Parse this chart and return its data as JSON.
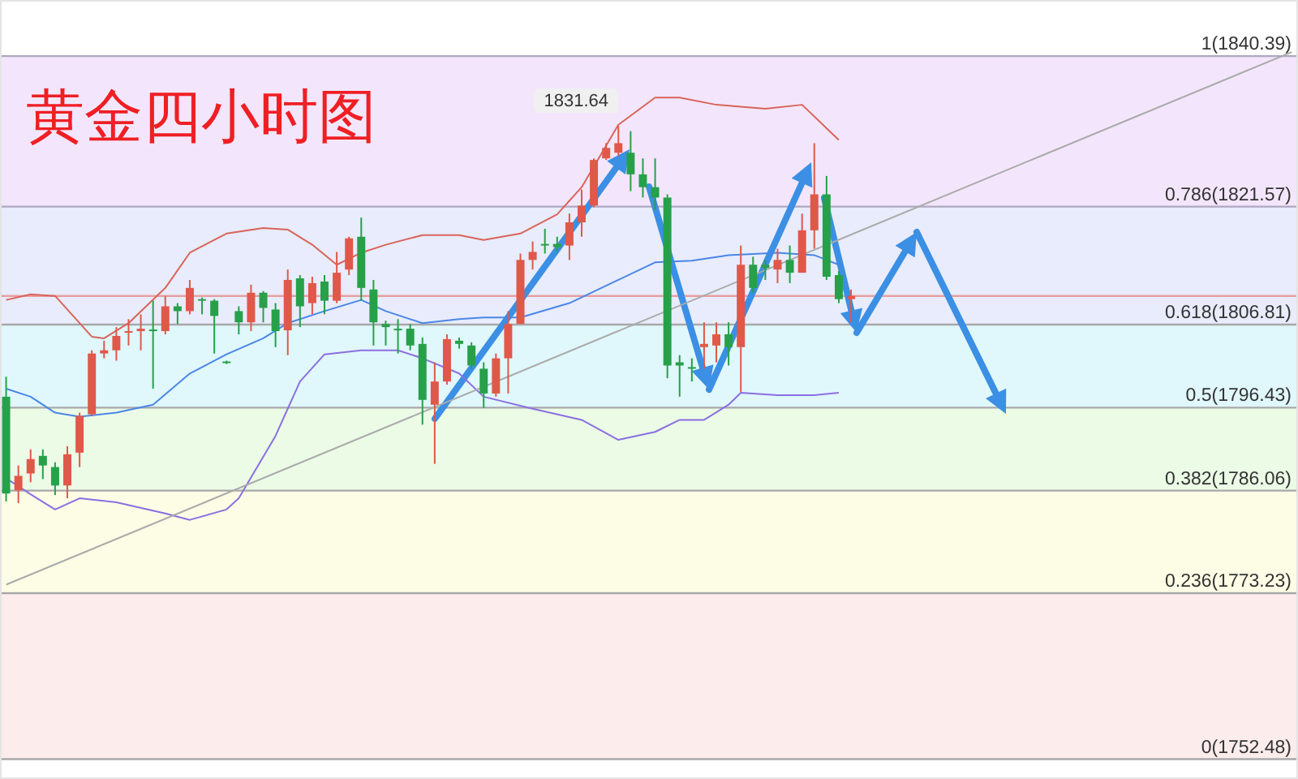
{
  "chart_data": {
    "type": "candlestick",
    "title": "黄金四小时图",
    "categories": [
      null,
      null,
      null,
      null,
      null,
      null,
      null,
      null,
      null,
      null,
      null,
      null,
      null,
      null,
      null,
      null,
      null,
      null,
      null,
      null,
      null,
      null,
      null,
      null,
      null,
      null,
      null,
      null,
      null,
      null,
      null,
      null,
      null,
      null,
      null,
      null,
      null,
      null,
      null,
      null,
      null,
      null,
      null,
      null,
      null,
      null,
      null,
      null,
      null,
      null,
      null,
      null,
      null,
      null,
      null,
      null,
      null,
      null,
      null,
      null,
      null,
      null,
      null,
      null,
      null,
      null,
      null,
      null,
      null,
      null,
      null,
      null,
      null,
      null,
      null,
      null,
      null,
      null,
      null,
      null,
      null,
      null,
      null,
      null,
      null,
      null,
      null,
      null,
      null,
      null,
      null,
      null,
      null,
      null,
      null,
      null,
      null,
      null,
      null,
      null,
      null,
      null,
      null,
      null,
      null,
      null
    ],
    "ohlc": [
      [
        1797.8,
        1800.3,
        1784.7,
        1785.7
      ],
      [
        1786.1,
        1789.2,
        1784.5,
        1787.9
      ],
      [
        1788.2,
        1791.2,
        1787.1,
        1790.0
      ],
      [
        1790.4,
        1791.2,
        1787.5,
        1789.2
      ],
      [
        1789.0,
        1789.6,
        1785.5,
        1786.7
      ],
      [
        1786.7,
        1791.6,
        1785.1,
        1790.6
      ],
      [
        1790.8,
        1795.8,
        1789.0,
        1795.4
      ],
      [
        1795.6,
        1803.6,
        1795.4,
        1803.2
      ],
      [
        1803.2,
        1804.8,
        1802.6,
        1803.6
      ],
      [
        1803.6,
        1806.5,
        1802.3,
        1805.4
      ],
      [
        1805.8,
        1807.5,
        1804.2,
        1806.0
      ],
      [
        1806.0,
        1808.1,
        1803.6,
        1806.3
      ],
      [
        1806.2,
        1809.8,
        1798.8,
        1806.0
      ],
      [
        1806.0,
        1810.4,
        1805.6,
        1809.1
      ],
      [
        1809.1,
        1809.5,
        1806.9,
        1808.5
      ],
      [
        1808.5,
        1812.4,
        1808.1,
        1811.4
      ],
      [
        1810.0,
        1810.2,
        1808.1,
        1809.8
      ],
      [
        1809.8,
        1810.0,
        1803.2,
        1807.9
      ],
      [
        1802.2,
        1802.3,
        1801.9,
        1802.1
      ],
      [
        1808.5,
        1809.1,
        1805.6,
        1807.1
      ],
      [
        1807.1,
        1811.8,
        1806.0,
        1810.8
      ],
      [
        1810.8,
        1811.0,
        1807.1,
        1808.9
      ],
      [
        1808.7,
        1809.5,
        1804.0,
        1806.0
      ],
      [
        1806.1,
        1813.7,
        1803.0,
        1812.4
      ],
      [
        1812.6,
        1813.0,
        1806.5,
        1809.1
      ],
      [
        1809.5,
        1812.8,
        1808.1,
        1812.0
      ],
      [
        1812.2,
        1813.0,
        1808.1,
        1809.8
      ],
      [
        1809.8,
        1815.9,
        1809.5,
        1813.3
      ],
      [
        1813.7,
        1817.8,
        1813.0,
        1817.6
      ],
      [
        1817.8,
        1820.2,
        1809.8,
        1811.4
      ],
      [
        1811.2,
        1812.4,
        1804.2,
        1807.1
      ],
      [
        1806.9,
        1807.3,
        1804.2,
        1806.5
      ],
      [
        1806.3,
        1807.5,
        1803.2,
        1806.2
      ],
      [
        1806.3,
        1806.9,
        1803.6,
        1804.2
      ],
      [
        1804.4,
        1805.2,
        1794.3,
        1797.4
      ],
      [
        1796.8,
        1802.1,
        1789.4,
        1799.7
      ],
      [
        1799.7,
        1805.6,
        1799.3,
        1805.0
      ],
      [
        1804.8,
        1805.2,
        1803.8,
        1804.4
      ],
      [
        1804.2,
        1804.6,
        1801.3,
        1801.7
      ],
      [
        1801.3,
        1802.1,
        1796.4,
        1798.2
      ],
      [
        1798.2,
        1803.2,
        1797.8,
        1802.6
      ],
      [
        1802.6,
        1808.5,
        1798.2,
        1806.9
      ],
      [
        1806.9,
        1815.7,
        1806.9,
        1814.9
      ],
      [
        1814.9,
        1817.2,
        1813.7,
        1815.9
      ],
      [
        1816.9,
        1818.8,
        1815.7,
        1816.7
      ],
      [
        1816.9,
        1817.8,
        1815.9,
        1816.5
      ],
      [
        1816.7,
        1820.7,
        1814.9,
        1819.6
      ],
      [
        1819.6,
        1823.7,
        1817.8,
        1821.7
      ],
      [
        1821.7,
        1827.6,
        1821.5,
        1827.4
      ],
      [
        1827.6,
        1829.5,
        1827.4,
        1828.9
      ],
      [
        1828.3,
        1831.64,
        1827.9,
        1829.5
      ],
      [
        1828.3,
        1831.0,
        1823.5,
        1825.6
      ],
      [
        1825.6,
        1827.6,
        1822.7,
        1824.0
      ],
      [
        1824.0,
        1827.6,
        1821.1,
        1822.7
      ],
      [
        1822.7,
        1823.1,
        1800.1,
        1801.7
      ],
      [
        1802.1,
        1803.0,
        1797.8,
        1801.7
      ],
      [
        1801.5,
        1802.6,
        1799.7,
        1801.3
      ],
      [
        1804.0,
        1807.1,
        1801.3,
        1804.4
      ],
      [
        1804.2,
        1807.1,
        1802.1,
        1805.6
      ],
      [
        1805.6,
        1807.1,
        1801.7,
        1804.0
      ],
      [
        1804.0,
        1816.7,
        1798.4,
        1814.3
      ],
      [
        1814.3,
        1815.3,
        1810.8,
        1811.4
      ],
      [
        1814.3,
        1814.9,
        1812.4,
        1813.9
      ],
      [
        1813.7,
        1816.3,
        1812.0,
        1814.9
      ],
      [
        1814.9,
        1816.7,
        1812.0,
        1813.3
      ],
      [
        1813.3,
        1820.7,
        1813.3,
        1818.6
      ],
      [
        1818.6,
        1829.5,
        1816.3,
        1823.1
      ],
      [
        1823.1,
        1825.4,
        1812.4,
        1812.8
      ],
      [
        1813.0,
        1813.5,
        1809.5,
        1810.0
      ],
      [
        1810.0,
        1811.2,
        1807.1,
        1810.4
      ],
      null,
      null,
      null,
      null,
      null,
      null,
      null,
      null,
      null,
      null,
      null,
      null,
      null,
      null,
      null,
      null,
      null,
      null,
      null,
      null,
      null,
      null,
      null,
      null,
      null,
      null,
      null,
      null,
      null,
      null,
      null,
      null,
      null,
      null,
      null,
      null
    ],
    "colors": [
      "#27a04a",
      "#e0584a",
      "#e0584a",
      "#27a04a",
      "#27a04a",
      "#e0584a",
      "#e0584a",
      "#e0584a",
      "#e0584a",
      "#e0584a",
      "#e0584a",
      "#e0584a",
      "#27a04a",
      "#e0584a",
      "#27a04a",
      "#e0584a",
      "#27a04a",
      "#27a04a",
      "#27a04a",
      "#27a04a",
      "#e0584a",
      "#27a04a",
      "#27a04a",
      "#e0584a",
      "#27a04a",
      "#e0584a",
      "#27a04a",
      "#e0584a",
      "#e0584a",
      "#27a04a",
      "#27a04a",
      "#27a04a",
      "#27a04a",
      "#27a04a",
      "#27a04a",
      "#e0584a",
      "#e0584a",
      "#27a04a",
      "#27a04a",
      "#27a04a",
      "#e0584a",
      "#e0584a",
      "#e0584a",
      "#e0584a",
      "#27a04a",
      "#27a04a",
      "#e0584a",
      "#e0584a",
      "#e0584a",
      "#e0584a",
      "#e0584a",
      "#27a04a",
      "#27a04a",
      "#27a04a",
      "#27a04a",
      "#27a04a",
      "#27a04a",
      "#e0584a",
      "#e0584a",
      "#27a04a",
      "#e0584a",
      "#27a04a",
      "#27a04a",
      "#e0584a",
      "#27a04a",
      "#e0584a",
      "#e0584a",
      "#27a04a",
      "#27a04a",
      "#e0584a",
      null,
      null,
      null,
      null,
      null,
      null,
      null,
      null,
      null,
      null,
      null,
      null,
      null,
      null,
      null,
      null,
      null,
      null,
      null,
      null,
      null,
      null,
      null,
      null,
      null,
      null,
      null,
      null,
      null,
      null,
      null,
      null,
      null,
      null,
      null,
      null
    ],
    "series": [
      {
        "type": "line",
        "color": "#d9645a",
        "values": [
          1809.9,
          null,
          1810.6,
          null,
          1810.4,
          null,
          null,
          1805.3,
          1805.1,
          null,
          1807.0,
          null,
          null,
          1811.4,
          null,
          1815.8,
          null,
          null,
          1818.2,
          null,
          null,
          1818.9,
          null,
          1818.7,
          null,
          1816.8,
          null,
          1814.3,
          null,
          1815.8,
          null,
          1816.8,
          null,
          null,
          1818.0,
          null,
          null,
          1818.0,
          null,
          1817.4,
          null,
          null,
          1818.2,
          null,
          null,
          1820.6,
          null,
          1824.0,
          null,
          null,
          1831.8,
          null,
          null,
          1835.2,
          null,
          1835.2,
          null,
          null,
          1834.3,
          null,
          null,
          null,
          1833.8,
          null,
          null,
          1834.3,
          null,
          null,
          1829.9,
          null,
          null,
          null,
          null,
          null,
          null,
          null,
          null,
          null,
          null,
          null,
          null,
          null,
          null,
          null,
          null,
          null,
          null,
          null,
          null,
          null,
          null,
          null,
          null,
          null,
          null,
          null,
          null,
          null,
          null,
          null,
          null,
          null,
          null,
          null,
          null,
          null
        ]
      },
      {
        "type": "line",
        "color": "#4a86e8",
        "values": [
          1798.8,
          null,
          1797.8,
          null,
          1795.8,
          null,
          1795.3,
          null,
          null,
          1795.8,
          null,
          null,
          1796.8,
          null,
          null,
          1800.7,
          null,
          null,
          1803.1,
          null,
          null,
          1805.1,
          null,
          1807.0,
          null,
          null,
          1808.5,
          null,
          null,
          1809.9,
          null,
          1808.5,
          null,
          null,
          1807.0,
          null,
          null,
          1807.5,
          null,
          1807.7,
          null,
          null,
          1807.7,
          null,
          null,
          null,
          1809.5,
          null,
          null,
          null,
          1812.4,
          null,
          null,
          1814.6,
          null,
          null,
          1814.8,
          null,
          null,
          1815.5,
          null,
          null,
          null,
          1815.8,
          null,
          null,
          1815.5,
          null,
          1814.3,
          null,
          null,
          null,
          null,
          null,
          null,
          null,
          null,
          null,
          null,
          null,
          null,
          null,
          null,
          null,
          null,
          null,
          null,
          null,
          null,
          null,
          null,
          null,
          null,
          null,
          null,
          null,
          null,
          null,
          null,
          null,
          null,
          null,
          null,
          null,
          null,
          null
        ]
      },
      {
        "type": "line",
        "color": "#8b6fe0",
        "values": [
          1787.6,
          null,
          1785.6,
          null,
          1783.7,
          null,
          1785.1,
          null,
          null,
          1784.6,
          null,
          null,
          null,
          1783.2,
          null,
          1782.4,
          null,
          null,
          1783.7,
          1785.1,
          null,
          null,
          1792.9,
          null,
          1799.7,
          null,
          1803.1,
          null,
          null,
          1803.6,
          null,
          null,
          1803.6,
          null,
          1802.6,
          null,
          null,
          1800.7,
          null,
          1797.8,
          null,
          null,
          null,
          1796.3,
          null,
          null,
          null,
          1794.9,
          null,
          null,
          1792.4,
          null,
          null,
          1793.4,
          null,
          1794.9,
          null,
          1794.9,
          null,
          1796.8,
          1798.3,
          null,
          null,
          1798.0,
          null,
          null,
          1798.0,
          null,
          1798.3,
          null,
          null,
          null,
          null,
          null,
          null,
          null,
          null,
          null,
          null,
          null,
          null,
          null,
          null,
          null,
          null,
          null,
          null,
          null,
          null,
          null,
          null,
          null,
          null,
          null,
          null,
          null,
          null,
          null,
          null,
          null,
          null,
          null,
          null,
          null,
          null,
          null
        ]
      },
      {
        "type": "line",
        "color": "#aaaaaa",
        "values": [
          1774.3,
          null,
          null,
          null,
          null,
          null,
          null,
          null,
          null,
          null,
          null,
          null,
          null,
          null,
          null,
          null,
          null,
          null,
          null,
          null,
          null,
          null,
          null,
          null,
          null,
          null,
          null,
          null,
          null,
          null,
          null,
          null,
          null,
          null,
          null,
          null,
          null,
          null,
          null,
          null,
          null,
          null,
          null,
          null,
          null,
          null,
          null,
          null,
          null,
          null,
          null,
          null,
          null,
          null,
          null,
          null,
          null,
          null,
          null,
          null,
          null,
          null,
          null,
          null,
          null,
          null,
          null,
          null,
          null,
          null,
          null,
          null,
          null,
          null,
          null,
          null,
          null,
          null,
          null,
          null,
          null,
          null,
          null,
          null,
          null,
          null,
          null,
          null,
          null,
          null,
          null,
          null,
          null,
          null,
          null,
          null,
          null,
          null,
          null,
          null,
          null,
          null,
          null,
          null,
          null,
          1840.9
        ]
      }
    ],
    "ylim": [
      1750,
      1847.4
    ],
    "ref_lines": [
      {
        "axis": "y",
        "value": 1840.39,
        "label": "1(1840.39)",
        "color": "#b0a8c0"
      },
      {
        "axis": "y",
        "value": 1821.57,
        "label": "0.786(1821.57)",
        "color": "#b0a8c0"
      },
      {
        "axis": "y",
        "value": 1810.4,
        "label": null,
        "color": "#e8a0a0"
      },
      {
        "axis": "y",
        "value": 1806.81,
        "label": "0.618(1806.81)",
        "color": "#a8a8a8"
      },
      {
        "axis": "y",
        "value": 1796.43,
        "label": "0.5(1796.43)",
        "color": "#a8a8a8"
      },
      {
        "axis": "y",
        "value": 1786.06,
        "label": "0.382(1786.06)",
        "color": "#a8a8a8"
      },
      {
        "axis": "y",
        "value": 1773.23,
        "label": "0.236(1773.23)",
        "color": "#a8a8a8"
      },
      {
        "axis": "y",
        "value": 1752.48,
        "label": "0(1752.48)",
        "color": "#a8a8a8"
      }
    ],
    "bands": [
      {
        "axis": "y",
        "from": 1821.57,
        "to": 1840.39,
        "color": "#f3e6fc"
      },
      {
        "axis": "y",
        "from": 1806.81,
        "to": 1821.57,
        "color": "#e8ecfc"
      },
      {
        "axis": "y",
        "from": 1796.43,
        "to": 1806.81,
        "color": "#e0f7fc"
      },
      {
        "axis": "y",
        "from": 1786.06,
        "to": 1796.43,
        "color": "#ebfbe6"
      },
      {
        "axis": "y",
        "from": 1773.23,
        "to": 1786.06,
        "color": "#fdfde6"
      },
      {
        "axis": "y",
        "from": 1752.48,
        "to": 1773.23,
        "color": "#fdecec"
      }
    ],
    "annotations": [
      "1831.64"
    ]
  }
}
